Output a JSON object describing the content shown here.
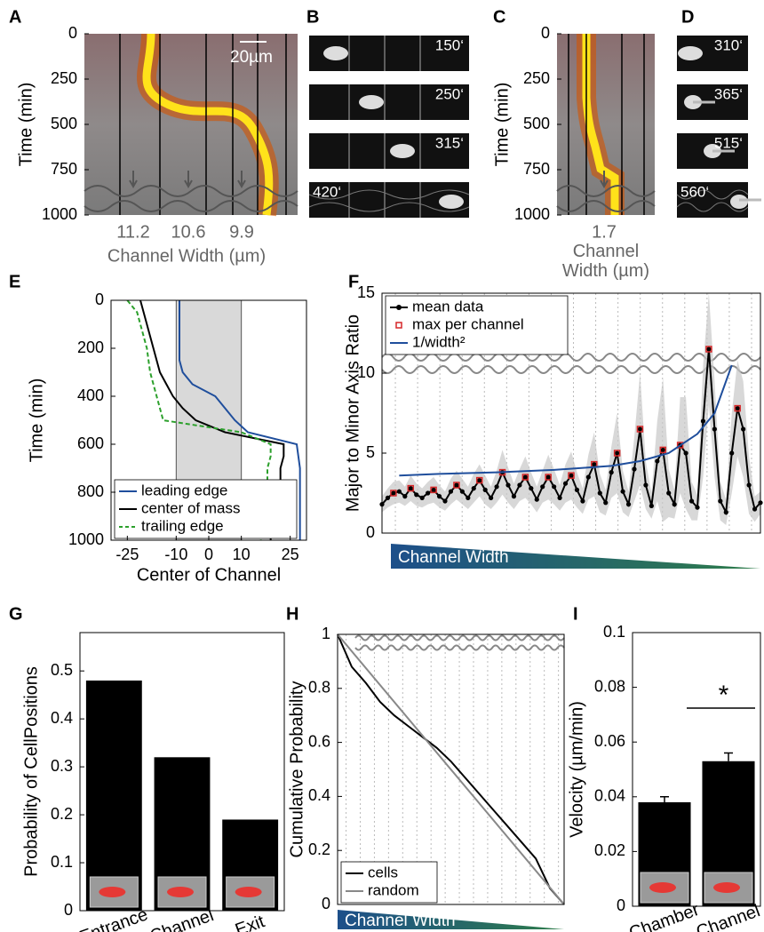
{
  "panels": [
    {
      "label": "B",
      "frames": [
        "150‘",
        "250‘",
        "315‘",
        "420‘"
      ]
    },
    {
      "label": "D",
      "frames": [
        "310‘",
        "365‘",
        "515‘",
        "560‘"
      ]
    }
  ],
  "chart_data": [
    {
      "panel": "A",
      "type": "kymograph",
      "ylabel": "Time (min)",
      "ylim": [
        0,
        1000
      ],
      "yticks": [
        0,
        250,
        500,
        750,
        1000
      ],
      "y_inverted": true,
      "categories": [
        11.2,
        10.6,
        9.9
      ],
      "xlabel": "Channel Width (µm)",
      "scale_label": "20µm"
    },
    {
      "panel": "C",
      "type": "kymograph",
      "ylabel": "Time (min)",
      "ylim": [
        0,
        1000
      ],
      "yticks": [
        0,
        250,
        500,
        750,
        1000
      ],
      "y_inverted": true,
      "categories": [
        1.7
      ],
      "xlabel": "Channel Width (µm)"
    },
    {
      "panel": "E",
      "type": "line",
      "xlabel": "Center of Channel",
      "ylabel": "Time (min)",
      "xlim": [
        -30,
        30
      ],
      "xticks": [
        -25,
        -10,
        0,
        10,
        25
      ],
      "ylim": [
        0,
        1000
      ],
      "yticks": [
        0,
        200,
        400,
        600,
        800,
        1000
      ],
      "y_inverted": true,
      "channel_region": [
        -10,
        10
      ],
      "legend": "lower left",
      "y": [
        0,
        50,
        100,
        150,
        200,
        250,
        300,
        350,
        400,
        450,
        500,
        550,
        600,
        650,
        700,
        750,
        800,
        850,
        900,
        950,
        1000
      ],
      "series": [
        {
          "name": "leading edge",
          "color": "#1f4e9c",
          "x": [
            -9,
            -9,
            -9,
            -9,
            -9,
            -9,
            -8,
            -5,
            2,
            5,
            8,
            12,
            27,
            27.5,
            28,
            28,
            28,
            28,
            28,
            28,
            28
          ]
        },
        {
          "name": "center of mass",
          "color": "#000000",
          "x": [
            -21,
            -20,
            -19,
            -18,
            -17,
            -16,
            -15,
            -13,
            -11,
            -8,
            -4,
            5,
            23,
            23,
            22,
            22,
            21,
            21,
            20,
            19,
            19
          ]
        },
        {
          "name": "trailing edge",
          "color": "#2ca02c",
          "dash": true,
          "x": [
            -25,
            -22,
            -21,
            -20,
            -19,
            -18.5,
            -18,
            -17,
            -16,
            -15,
            -14,
            10,
            19,
            19,
            18,
            18,
            17,
            17,
            16,
            16,
            16
          ]
        }
      ]
    },
    {
      "panel": "F",
      "type": "line",
      "ylabel": "Major to Minor Axis Ratio",
      "xlim": [
        0,
        66
      ],
      "ylim": [
        0,
        15
      ],
      "yticks": [
        0,
        5,
        10,
        15
      ],
      "legend": "upper left",
      "footer": "Channel Width",
      "x": [
        0,
        1,
        2,
        3,
        4,
        5,
        6,
        7,
        8,
        9,
        10,
        11,
        12,
        13,
        14,
        15,
        16,
        17,
        18,
        19,
        20,
        21,
        22,
        23,
        24,
        25,
        26,
        27,
        28,
        29,
        30,
        31,
        32,
        33,
        34,
        35,
        36,
        37,
        38,
        39,
        40,
        41,
        42,
        43,
        44,
        45,
        46,
        47,
        48,
        49,
        50,
        51,
        52,
        53,
        54,
        55,
        56,
        57,
        58,
        59,
        60,
        61,
        62,
        63,
        64,
        65,
        66
      ],
      "series": [
        {
          "name": "mean data",
          "color": "#000000",
          "marker": "dot",
          "values": [
            1.8,
            2.2,
            2.5,
            2.6,
            2.3,
            2.8,
            2.4,
            2.2,
            2.5,
            2.7,
            2.3,
            2.0,
            2.6,
            3.0,
            2.6,
            2.2,
            2.8,
            3.3,
            2.7,
            2.2,
            2.9,
            3.8,
            3.0,
            2.3,
            3.0,
            3.5,
            2.8,
            2.1,
            2.9,
            3.5,
            2.9,
            2.2,
            3.1,
            3.6,
            2.7,
            2.0,
            3.5,
            4.3,
            2.5,
            1.9,
            3.8,
            5.0,
            2.6,
            1.8,
            4.0,
            6.5,
            3.0,
            1.7,
            4.5,
            5.2,
            2.5,
            1.8,
            5.5,
            5.0,
            2.0,
            1.6,
            7.0,
            11.5,
            6.5,
            2.0,
            1.3,
            5.0,
            7.8,
            6.5,
            3.0,
            1.5,
            1.9
          ],
          "std": [
            0.5,
            0.6,
            0.7,
            0.7,
            0.6,
            0.8,
            0.7,
            0.6,
            0.7,
            0.8,
            0.7,
            0.6,
            0.8,
            0.9,
            0.8,
            0.7,
            0.9,
            1.0,
            0.9,
            0.7,
            1.0,
            1.4,
            1.1,
            0.8,
            1.0,
            1.3,
            1.0,
            0.8,
            1.0,
            1.4,
            1.1,
            0.8,
            1.2,
            1.5,
            1.1,
            0.8,
            1.4,
            2.0,
            1.2,
            0.8,
            1.6,
            2.5,
            1.3,
            0.8,
            2.0,
            3.5,
            1.5,
            0.8,
            2.5,
            4.5,
            1.5,
            0.9,
            3.0,
            3.5,
            1.2,
            0.8,
            3.5,
            3.5,
            3.0,
            1.2,
            0.8,
            2.5,
            3.0,
            3.0,
            1.8,
            0.8,
            0.7
          ]
        },
        {
          "name": "max per channel",
          "color": "#d62728",
          "marker": "square",
          "line": false,
          "x": [
            2,
            5,
            9,
            13,
            17,
            21,
            25,
            29,
            33,
            37,
            41,
            45,
            49,
            52,
            57,
            62
          ],
          "values": [
            2.5,
            2.8,
            2.7,
            3.0,
            3.3,
            3.8,
            3.5,
            3.5,
            3.6,
            4.3,
            5.0,
            6.5,
            5.2,
            5.5,
            11.5,
            7.8
          ]
        },
        {
          "name": "1/width²",
          "color": "#1f4e9c",
          "x": [
            3,
            10,
            20,
            30,
            40,
            45,
            50,
            55,
            58,
            61
          ],
          "values": [
            3.6,
            3.7,
            3.8,
            3.95,
            4.2,
            4.5,
            5.0,
            6.2,
            7.5,
            10.5
          ]
        }
      ]
    },
    {
      "panel": "G",
      "type": "bar",
      "ylabel": "Probability of CellPositions",
      "categories": [
        "Entrance",
        "Channel",
        "Exit"
      ],
      "values": [
        0.48,
        0.32,
        0.19
      ],
      "color": "#000000",
      "ylim": [
        0,
        0.58
      ],
      "yticks": [
        0,
        0.1,
        0.2,
        0.3,
        0.4,
        0.5
      ]
    },
    {
      "panel": "H",
      "type": "line",
      "ylabel": "Cumulative Probability",
      "xlim": [
        0,
        16
      ],
      "ylim": [
        0,
        1
      ],
      "yticks": [
        0,
        0.2,
        0.4,
        0.6,
        0.8,
        1
      ],
      "legend": "lower left",
      "footer": "Channel Width",
      "series": [
        {
          "name": "cells",
          "color": "#000000",
          "x": [
            0,
            1,
            2,
            3,
            4,
            5,
            6,
            7,
            8,
            9,
            10,
            11,
            12,
            13,
            14,
            15,
            16
          ],
          "values": [
            1,
            0.88,
            0.82,
            0.75,
            0.7,
            0.66,
            0.62,
            0.58,
            0.53,
            0.47,
            0.41,
            0.35,
            0.29,
            0.23,
            0.17,
            0.06,
            0
          ]
        },
        {
          "name": "random",
          "color": "#888888",
          "x": [
            0,
            16
          ],
          "values": [
            1,
            0
          ]
        }
      ]
    },
    {
      "panel": "I",
      "type": "bar",
      "ylabel": "Velocity  (µm/min)",
      "categories": [
        "Chamber",
        "Channel"
      ],
      "values": [
        0.038,
        0.053
      ],
      "errors": [
        0.002,
        0.003
      ],
      "color": "#000000",
      "ylim": [
        0,
        0.1
      ],
      "yticks": [
        0,
        0.02,
        0.04,
        0.06,
        0.08,
        0.1
      ],
      "annotation": "*"
    }
  ]
}
